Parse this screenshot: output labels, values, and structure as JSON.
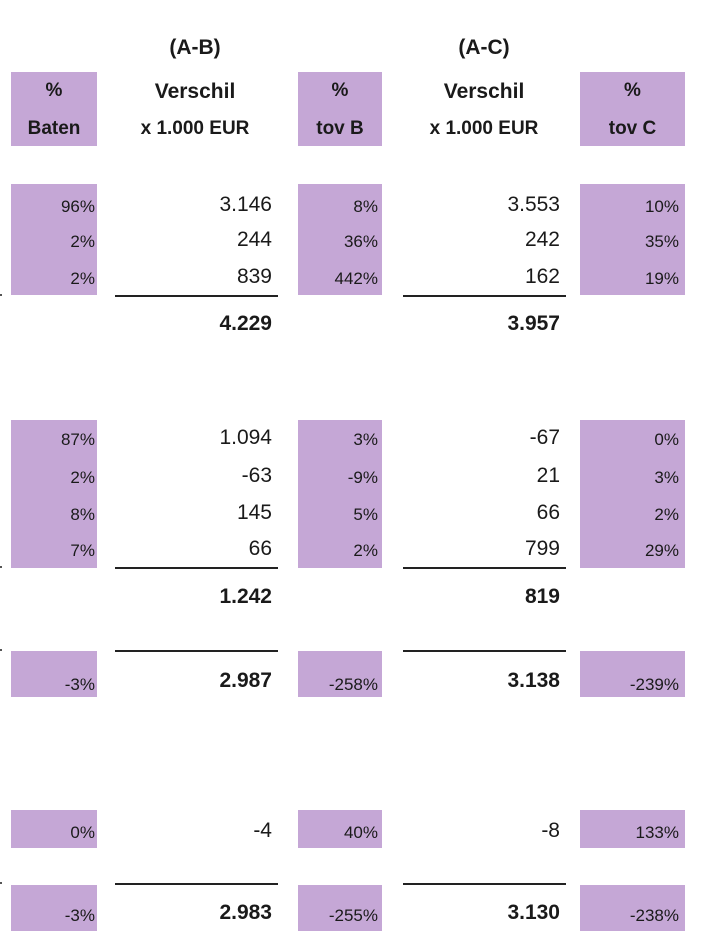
{
  "header": {
    "col_ab_group": "(A-B)",
    "col_ac_group": "(A-C)",
    "baten": {
      "line1": "%",
      "line2": "Baten"
    },
    "diff_ab": {
      "line1": "Verschil",
      "line2": "x 1.000 EUR"
    },
    "tov_b": {
      "line1": "%",
      "line2": "tov B"
    },
    "diff_ac": {
      "line1": "Verschil",
      "line2": "x 1.000 EUR"
    },
    "tov_c": {
      "line1": "%",
      "line2": "tov C"
    }
  },
  "rows": [
    {
      "baten": "96%",
      "ab": "3.146",
      "tov_b": "8%",
      "ac": "3.553",
      "tov_c": "10%"
    },
    {
      "baten": "2%",
      "ab": "244",
      "tov_b": "36%",
      "ac": "242",
      "tov_c": "35%"
    },
    {
      "baten": "2%",
      "ab": "839",
      "tov_b": "442%",
      "ac": "162",
      "tov_c": "19%"
    },
    {
      "baten": "",
      "ab": "4.229",
      "tov_b": "",
      "ac": "3.957",
      "tov_c": ""
    },
    {
      "baten": "87%",
      "ab": "1.094",
      "tov_b": "3%",
      "ac": "-67",
      "tov_c": "0%"
    },
    {
      "baten": "2%",
      "ab": "-63",
      "tov_b": "-9%",
      "ac": "21",
      "tov_c": "3%"
    },
    {
      "baten": "8%",
      "ab": "145",
      "tov_b": "5%",
      "ac": "66",
      "tov_c": "2%"
    },
    {
      "baten": "7%",
      "ab": "66",
      "tov_b": "2%",
      "ac": "799",
      "tov_c": "29%"
    },
    {
      "baten": "",
      "ab": "1.242",
      "tov_b": "",
      "ac": "819",
      "tov_c": ""
    },
    {
      "baten": "-3%",
      "ab": "2.987",
      "tov_b": "-258%",
      "ac": "3.138",
      "tov_c": "-239%"
    },
    {
      "baten": "0%",
      "ab": "-4",
      "tov_b": "40%",
      "ac": "-8",
      "tov_c": "133%"
    },
    {
      "baten": "-3%",
      "ab": "2.983",
      "tov_b": "-255%",
      "ac": "3.130",
      "tov_c": "-238%"
    }
  ],
  "colors": {
    "shade": "#c5a7d6",
    "text": "#1a1a1a",
    "rule": "#222222"
  }
}
